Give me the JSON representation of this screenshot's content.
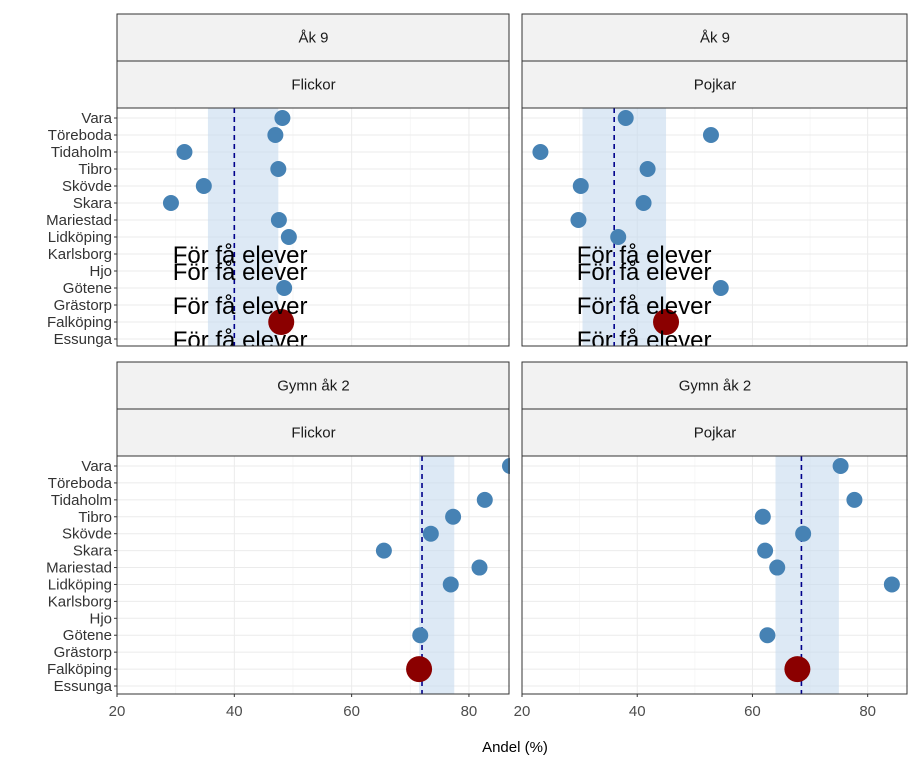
{
  "chart_data": {
    "type": "scatter",
    "xlabel": "Andel (%)",
    "categories": [
      "Vara",
      "Töreboda",
      "Tidaholm",
      "Tibro",
      "Skövde",
      "Skara",
      "Mariestad",
      "Lidköping",
      "Karlsborg",
      "Hjo",
      "Götene",
      "Grästorp",
      "Falköping",
      "Essunga"
    ],
    "highlight": "Falköping",
    "colors": {
      "point": "#4682b4",
      "highlight": "#8b0000",
      "band": "#c6dbef",
      "median": "#00008b"
    },
    "panels": [
      {
        "strip_top": "Åk 9",
        "strip_bottom": "Flickor",
        "xlim": [
          20,
          87
        ],
        "band": [
          35.5,
          47.5
        ],
        "median": 40,
        "values": [
          48.2,
          47,
          31.5,
          47.5,
          34.8,
          29.2,
          47.6,
          49.3,
          null,
          null,
          48.5,
          null,
          48,
          null
        ],
        "too_few_label": "För få elever",
        "too_few": [
          "Karlsborg",
          "Hjo",
          "Grästorp",
          "Essunga"
        ]
      },
      {
        "strip_top": "Åk 9",
        "strip_bottom": "Pojkar",
        "xlim": [
          20,
          87
        ],
        "band": [
          30.5,
          45
        ],
        "median": 36,
        "values": [
          38,
          52.8,
          23.2,
          41.8,
          30.2,
          41.1,
          29.8,
          36.7,
          null,
          null,
          54.5,
          null,
          45,
          null
        ],
        "too_few_label": "För få elever",
        "too_few": [
          "Karlsborg",
          "Hjo",
          "Grästorp",
          "Essunga"
        ]
      },
      {
        "strip_top": "Gymn åk 2",
        "strip_bottom": "Flickor",
        "xlim": [
          20,
          87
        ],
        "band": [
          71.5,
          77.5
        ],
        "median": 72,
        "values": [
          87,
          null,
          82.7,
          77.3,
          73.5,
          65.5,
          81.8,
          76.9,
          null,
          null,
          71.7,
          null,
          71.5,
          null
        ],
        "too_few_label": "",
        "too_few": []
      },
      {
        "strip_top": "Gymn åk 2",
        "strip_bottom": "Pojkar",
        "xlim": [
          20,
          87
        ],
        "band": [
          64,
          75
        ],
        "median": 68.5,
        "values": [
          75.3,
          null,
          77.7,
          61.8,
          68.8,
          62.2,
          64.3,
          84.2,
          null,
          null,
          62.6,
          null,
          67.8,
          null
        ],
        "too_few_label": "",
        "too_few": []
      }
    ],
    "xticks": [
      "20",
      "40",
      "60",
      "80"
    ],
    "xtick_values": [
      20,
      40,
      60,
      80
    ]
  }
}
